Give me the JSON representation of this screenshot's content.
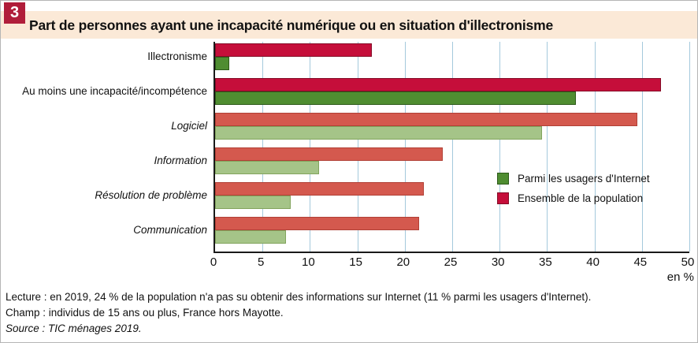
{
  "header": {
    "number": "3",
    "title": "Part de personnes ayant une incapacité numérique ou en situation d'illectronisme"
  },
  "chart_data": {
    "type": "bar",
    "orientation": "horizontal",
    "title": "Part de personnes ayant une incapacité numérique ou en situation d'illectronisme",
    "unit_label": "en %",
    "xlim": [
      0,
      50
    ],
    "xticks": [
      0,
      5,
      10,
      15,
      20,
      25,
      30,
      35,
      40,
      45,
      50
    ],
    "grid": "vertical light-blue gridlines every 5",
    "legend_position": "inside right, mid-height",
    "categories": [
      "Illectronisme",
      "Au moins une incapacité/incompétence",
      "Logiciel",
      "Information",
      "Résolution de problème",
      "Communication"
    ],
    "emphasized": [
      true,
      true,
      false,
      false,
      false,
      false
    ],
    "series": [
      {
        "key": "ensemble-population",
        "name": "Ensemble de la population",
        "values": [
          16.5,
          47,
          44.5,
          24,
          22,
          21.5
        ],
        "color_strong": "#c50e3a",
        "border_strong": "#840b26",
        "color_muted": "#d4594e",
        "border_muted": "#b14036"
      },
      {
        "key": "usagers-internet",
        "name": "Parmi les usagers d'Internet",
        "values": [
          1.5,
          38,
          34.5,
          11,
          8,
          7.5
        ],
        "color_strong": "#4f8d31",
        "border_strong": "#2d5a19",
        "color_muted": "#a5c488",
        "border_muted": "#82a45d"
      }
    ],
    "legend": [
      {
        "label": "Parmi les usagers d'Internet",
        "color": "#4f8d31",
        "border": "#2d5a19"
      },
      {
        "label": "Ensemble de la population",
        "color": "#c50e3a",
        "border": "#840b26"
      }
    ]
  },
  "colors": {
    "header_band": "#fbe9d7",
    "badge_red": "#b01d3a",
    "gridline_blue": "#a4c9dc",
    "axis_black": "#1a1a1a"
  },
  "footer": {
    "lecture": "Lecture : en 2019, 24 % de la population n'a pas su obtenir des informations sur Internet (11 % parmi les usagers d'Internet).",
    "champ": "Champ : individus de 15 ans ou plus, France hors Mayotte.",
    "source": "Source : TIC ménages 2019."
  }
}
